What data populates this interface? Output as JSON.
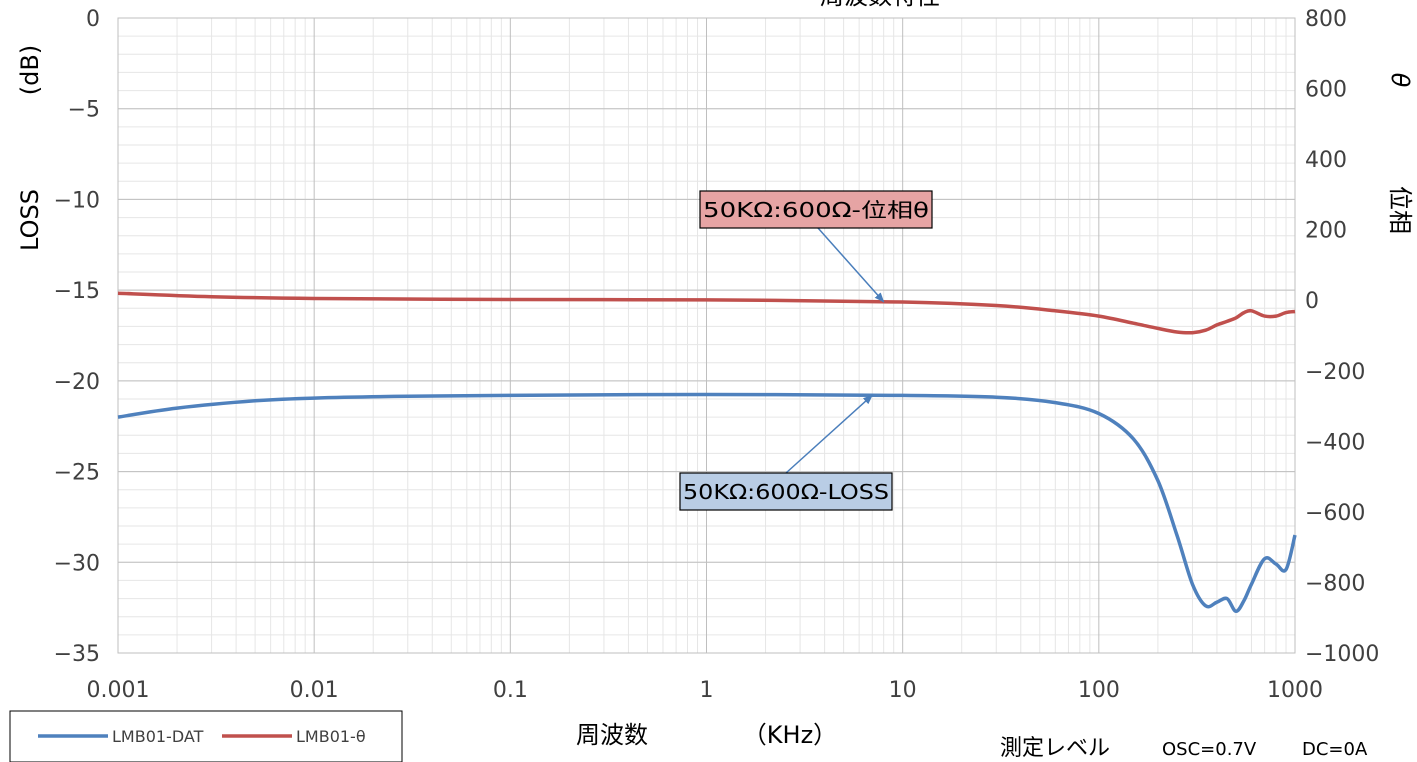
{
  "chart_data": {
    "type": "line",
    "xscale": "log",
    "xlim": [
      0.001,
      1000
    ],
    "x_ticks": [
      "0.001",
      "0.01",
      "0.1",
      "1",
      "10",
      "100",
      "1000"
    ],
    "y_left": {
      "label": "LOSS",
      "unit": "(dB)",
      "lim": [
        -35,
        0
      ],
      "ticks": [
        "0",
        "−5",
        "−10",
        "−15",
        "−20",
        "−25",
        "−30",
        "−35"
      ]
    },
    "y_right": {
      "label": "位相",
      "symbol": "θ",
      "lim": [
        -1000,
        800
      ],
      "ticks": [
        "800",
        "600",
        "400",
        "200",
        "0",
        "−200",
        "−400",
        "−600",
        "−800",
        "−1000"
      ]
    },
    "xlabel": "周波数",
    "xunit": "（KHz）",
    "title_partial": "周波数特性",
    "series": [
      {
        "name": "LMB01-DAT",
        "axis": "left",
        "color": "#4f81bd",
        "x": [
          0.001,
          0.002,
          0.005,
          0.01,
          0.03,
          0.1,
          1,
          10,
          30,
          60,
          100,
          150,
          200,
          250,
          300,
          350,
          400,
          450,
          500,
          550,
          600,
          700,
          800,
          900,
          1000
        ],
        "y": [
          -22.0,
          -21.5,
          -21.1,
          -20.95,
          -20.85,
          -20.8,
          -20.75,
          -20.8,
          -20.9,
          -21.2,
          -21.8,
          -23.2,
          -25.5,
          -28.5,
          -31.2,
          -32.4,
          -32.2,
          -32.0,
          -32.7,
          -32.1,
          -31.2,
          -29.8,
          -30.1,
          -30.4,
          -28.5
        ]
      },
      {
        "name": "LMB01-θ",
        "axis": "right",
        "color": "#c0504d",
        "x": [
          0.001,
          0.003,
          0.01,
          0.1,
          1,
          10,
          30,
          60,
          100,
          150,
          200,
          250,
          300,
          350,
          400,
          450,
          500,
          550,
          600,
          700,
          800,
          900,
          1000
        ],
        "y": [
          20,
          10,
          5,
          2,
          1,
          -5,
          -15,
          -30,
          -45,
          -65,
          -80,
          -90,
          -92,
          -85,
          -70,
          -60,
          -50,
          -35,
          -30,
          -45,
          -45,
          -35,
          -32
        ]
      }
    ],
    "annotations": [
      {
        "text": "50KΩ:600Ω-位相θ",
        "series": 1,
        "target_x": 8,
        "bg": "#e6a4a4"
      },
      {
        "text": "50KΩ:600Ω-LOSS",
        "series": 0,
        "target_x": 7,
        "bg": "#b9cde5"
      }
    ],
    "legend": {
      "position": "bottom-left",
      "entries": [
        "LMB01-DAT",
        "LMB01-θ"
      ]
    },
    "grid": true
  },
  "footer": {
    "measurement_label": "測定レベル",
    "osc": "OSC=0.7V",
    "dc": "DC=0A"
  }
}
